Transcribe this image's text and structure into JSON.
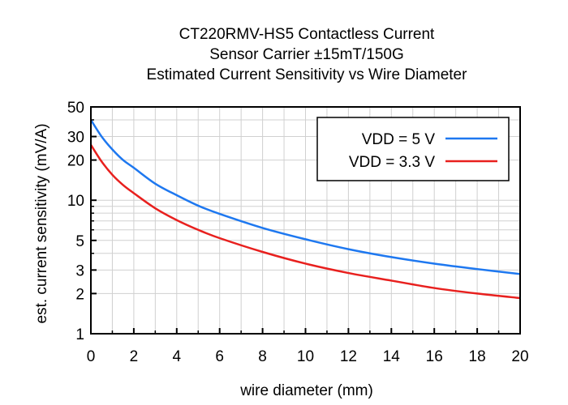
{
  "chart_data": {
    "type": "line",
    "title_lines": [
      "CT220RMV-HS5 Contactless Current",
      "Sensor Carrier ±15mT/150G",
      "Estimated Current Sensitivity vs Wire Diameter"
    ],
    "xlabel": "wire diameter (mm)",
    "ylabel": "est. current sensitivity (mV/A)",
    "xlim": [
      0,
      20
    ],
    "ylim": [
      1,
      50
    ],
    "yscale": "log",
    "x_ticks": [
      0,
      2,
      4,
      6,
      8,
      10,
      12,
      14,
      16,
      18,
      20
    ],
    "y_ticks": [
      1,
      2,
      3,
      5,
      10,
      20,
      30,
      50
    ],
    "grid": true,
    "legend_position": "top-right",
    "series": [
      {
        "name": "VDD = 5 V",
        "color": "#1e78f0",
        "x": [
          0,
          0.5,
          1,
          1.5,
          2,
          3,
          4,
          5,
          6,
          8,
          10,
          12,
          14,
          16,
          18,
          20
        ],
        "values": [
          40,
          30,
          24,
          20,
          17.5,
          13.3,
          10.9,
          9.1,
          7.9,
          6.2,
          5.1,
          4.3,
          3.75,
          3.35,
          3.05,
          2.8
        ]
      },
      {
        "name": "VDD = 3.3 V",
        "color": "#e8201e",
        "x": [
          0,
          0.5,
          1,
          1.5,
          2,
          3,
          4,
          5,
          6,
          8,
          10,
          12,
          14,
          16,
          18,
          20
        ],
        "values": [
          26,
          19.5,
          15.5,
          13,
          11.3,
          8.7,
          7.1,
          6,
          5.2,
          4.1,
          3.35,
          2.85,
          2.5,
          2.2,
          2.0,
          1.85
        ]
      }
    ]
  }
}
